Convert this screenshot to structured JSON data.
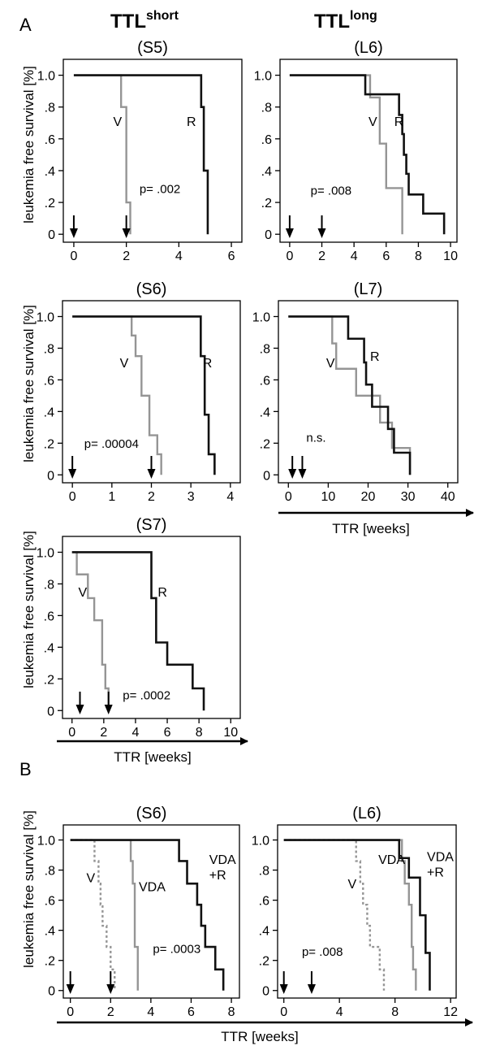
{
  "figure": {
    "panel_a_label": "A",
    "panel_b_label": "B",
    "column_short": {
      "base": "TTL",
      "sup": "short"
    },
    "column_long": {
      "base": "TTL",
      "sup": "long"
    },
    "ylabel": "leukemia free survival [%]",
    "xlabel": "TTR [weeks]"
  },
  "colors": {
    "black": "#111111",
    "gray": "#959595"
  },
  "chart_data": [
    {
      "id": "S5",
      "type": "line",
      "title": "(S5)",
      "xlim": [
        -0.4,
        6.4
      ],
      "ylim": [
        -0.05,
        1.1
      ],
      "xticks": [
        0,
        2,
        4,
        6
      ],
      "yticks": [
        {
          "v": 0,
          "label": "0"
        },
        {
          "v": 0.2,
          "label": ".2"
        },
        {
          "v": 0.4,
          "label": ".4"
        },
        {
          "v": 0.6,
          "label": ".6"
        },
        {
          "v": 0.8,
          "label": ".8"
        },
        {
          "v": 1,
          "label": "1.0"
        }
      ],
      "arrows": [
        0,
        2
      ],
      "pvalue": "p= .002",
      "pvalue_pos": [
        2.5,
        0.26
      ],
      "series": [
        {
          "name": "V",
          "color": "gray",
          "dash": false,
          "label_pos": [
            1.5,
            0.68
          ],
          "steps": [
            [
              0,
              1.0
            ],
            [
              1.8,
              0.8
            ],
            [
              2.0,
              0.2
            ],
            [
              2.15,
              0.0
            ]
          ]
        },
        {
          "name": "R",
          "color": "black",
          "dash": false,
          "label_pos": [
            4.3,
            0.68
          ],
          "steps": [
            [
              0,
              1.0
            ],
            [
              4.85,
              0.8
            ],
            [
              4.95,
              0.4
            ],
            [
              5.1,
              0.0
            ]
          ]
        }
      ]
    },
    {
      "id": "L6",
      "type": "line",
      "title": "(L6)",
      "xlim": [
        -0.6,
        10.4
      ],
      "ylim": [
        -0.05,
        1.1
      ],
      "xticks": [
        0,
        2,
        4,
        6,
        8,
        10
      ],
      "yticks": [
        {
          "v": 0,
          "label": "0"
        },
        {
          "v": 0.2,
          "label": ".2"
        },
        {
          "v": 0.4,
          "label": ".4"
        },
        {
          "v": 0.6,
          "label": ".6"
        },
        {
          "v": 0.8,
          "label": ".8"
        },
        {
          "v": 1,
          "label": "1.0"
        }
      ],
      "arrows": [
        0,
        2
      ],
      "pvalue": "p= .008",
      "pvalue_pos": [
        1.3,
        0.25
      ],
      "series": [
        {
          "name": "V",
          "color": "gray",
          "dash": false,
          "label_pos": [
            4.9,
            0.68
          ],
          "steps": [
            [
              0,
              1.0
            ],
            [
              5.0,
              0.86
            ],
            [
              5.6,
              0.57
            ],
            [
              6.0,
              0.29
            ],
            [
              7.0,
              0.0
            ]
          ]
        },
        {
          "name": "R",
          "color": "black",
          "dash": false,
          "label_pos": [
            6.5,
            0.68
          ],
          "steps": [
            [
              0,
              1.0
            ],
            [
              4.7,
              0.88
            ],
            [
              6.8,
              0.75
            ],
            [
              7.0,
              0.63
            ],
            [
              7.1,
              0.5
            ],
            [
              7.25,
              0.38
            ],
            [
              7.4,
              0.25
            ],
            [
              8.3,
              0.13
            ],
            [
              9.6,
              0.0
            ]
          ]
        }
      ]
    },
    {
      "id": "S6",
      "type": "line",
      "title": "(S6)",
      "xlim": [
        -0.25,
        4.25
      ],
      "ylim": [
        -0.05,
        1.1
      ],
      "xticks": [
        0,
        1,
        2,
        3,
        4
      ],
      "yticks": [
        {
          "v": 0,
          "label": "0"
        },
        {
          "v": 0.2,
          "label": ".2"
        },
        {
          "v": 0.4,
          "label": ".4"
        },
        {
          "v": 0.6,
          "label": ".6"
        },
        {
          "v": 0.8,
          "label": ".8"
        },
        {
          "v": 1,
          "label": "1.0"
        }
      ],
      "arrows": [
        0,
        2
      ],
      "pvalue": "p= .00004",
      "pvalue_pos": [
        0.3,
        0.17
      ],
      "series": [
        {
          "name": "V",
          "color": "gray",
          "dash": false,
          "label_pos": [
            1.2,
            0.68
          ],
          "steps": [
            [
              0,
              1.0
            ],
            [
              1.5,
              0.88
            ],
            [
              1.6,
              0.75
            ],
            [
              1.75,
              0.5
            ],
            [
              1.95,
              0.25
            ],
            [
              2.15,
              0.13
            ],
            [
              2.25,
              0.0
            ]
          ]
        },
        {
          "name": "R",
          "color": "black",
          "dash": false,
          "label_pos": [
            3.3,
            0.68
          ],
          "steps": [
            [
              0,
              1.0
            ],
            [
              3.25,
              0.75
            ],
            [
              3.35,
              0.38
            ],
            [
              3.45,
              0.13
            ],
            [
              3.6,
              0.0
            ]
          ]
        }
      ]
    },
    {
      "id": "L7",
      "type": "line",
      "title": "(L7)",
      "xlim": [
        -2.5,
        42.5
      ],
      "ylim": [
        -0.05,
        1.1
      ],
      "xticks": [
        0,
        10,
        20,
        30,
        40
      ],
      "yticks": [
        {
          "v": 0,
          "label": "0"
        },
        {
          "v": 0.2,
          "label": ".2"
        },
        {
          "v": 0.4,
          "label": ".4"
        },
        {
          "v": 0.6,
          "label": ".6"
        },
        {
          "v": 0.8,
          "label": ".8"
        },
        {
          "v": 1,
          "label": "1.0"
        }
      ],
      "arrows": [
        1,
        3.5
      ],
      "pvalue": "n.s.",
      "pvalue_pos": [
        4.5,
        0.21
      ],
      "series": [
        {
          "name": "V",
          "color": "gray",
          "dash": false,
          "label_pos": [
            9.5,
            0.68
          ],
          "steps": [
            [
              0,
              1.0
            ],
            [
              11,
              0.83
            ],
            [
              12,
              0.67
            ],
            [
              17,
              0.5
            ],
            [
              23,
              0.33
            ],
            [
              26,
              0.17
            ],
            [
              30.5,
              0.0
            ]
          ]
        },
        {
          "name": "R",
          "color": "black",
          "dash": false,
          "label_pos": [
            20.5,
            0.72
          ],
          "steps": [
            [
              0,
              1.0
            ],
            [
              15,
              0.86
            ],
            [
              19,
              0.71
            ],
            [
              19.5,
              0.57
            ],
            [
              21,
              0.43
            ],
            [
              25,
              0.29
            ],
            [
              26.5,
              0.14
            ],
            [
              30.5,
              0.0
            ]
          ]
        }
      ]
    },
    {
      "id": "S7",
      "type": "line",
      "title": "(S7)",
      "xlim": [
        -0.6,
        10.6
      ],
      "ylim": [
        -0.05,
        1.1
      ],
      "xticks": [
        0,
        2,
        4,
        6,
        8,
        10
      ],
      "yticks": [
        {
          "v": 0,
          "label": "0"
        },
        {
          "v": 0.2,
          "label": ".2"
        },
        {
          "v": 0.4,
          "label": ".4"
        },
        {
          "v": 0.6,
          "label": ".6"
        },
        {
          "v": 0.8,
          "label": ".8"
        },
        {
          "v": 1,
          "label": "1.0"
        }
      ],
      "arrows": [
        0.5,
        2.3
      ],
      "pvalue": "p= .0002",
      "pvalue_pos": [
        3.2,
        0.07
      ],
      "series": [
        {
          "name": "V",
          "color": "gray",
          "dash": false,
          "label_pos": [
            0.4,
            0.72
          ],
          "steps": [
            [
              0,
              1.0
            ],
            [
              0.3,
              0.86
            ],
            [
              1.0,
              0.71
            ],
            [
              1.4,
              0.57
            ],
            [
              1.9,
              0.29
            ],
            [
              2.1,
              0.14
            ],
            [
              2.3,
              0.0
            ]
          ]
        },
        {
          "name": "R",
          "color": "black",
          "dash": false,
          "label_pos": [
            5.4,
            0.72
          ],
          "steps": [
            [
              0,
              1.0
            ],
            [
              5.0,
              0.71
            ],
            [
              5.3,
              0.43
            ],
            [
              6.0,
              0.29
            ],
            [
              7.6,
              0.14
            ],
            [
              8.3,
              0.0
            ]
          ]
        }
      ]
    },
    {
      "id": "B-S6",
      "type": "line",
      "title": "(S6)",
      "xlim": [
        -0.35,
        8.4
      ],
      "ylim": [
        -0.05,
        1.1
      ],
      "xticks": [
        0,
        2,
        4,
        6,
        8
      ],
      "yticks": [
        {
          "v": 0,
          "label": "0"
        },
        {
          "v": 0.2,
          "label": ".2"
        },
        {
          "v": 0.4,
          "label": ".4"
        },
        {
          "v": 0.6,
          "label": ".6"
        },
        {
          "v": 0.8,
          "label": ".8"
        },
        {
          "v": 1,
          "label": "1.0"
        }
      ],
      "arrows": [
        0,
        2
      ],
      "pvalue": "p= .0003",
      "pvalue_pos": [
        4.1,
        0.25
      ],
      "series": [
        {
          "name": "V",
          "color": "gray",
          "dash": true,
          "label_pos": [
            0.8,
            0.72
          ],
          "steps": [
            [
              0,
              1.0
            ],
            [
              1.2,
              0.86
            ],
            [
              1.4,
              0.71
            ],
            [
              1.5,
              0.57
            ],
            [
              1.6,
              0.43
            ],
            [
              1.8,
              0.29
            ],
            [
              2.0,
              0.14
            ],
            [
              2.2,
              0.0
            ]
          ]
        },
        {
          "name": "VDA",
          "color": "gray",
          "dash": false,
          "label_pos": [
            3.4,
            0.66
          ],
          "steps": [
            [
              0,
              1.0
            ],
            [
              3.0,
              0.86
            ],
            [
              3.1,
              0.71
            ],
            [
              3.2,
              0.29
            ],
            [
              3.35,
              0.0
            ]
          ]
        },
        {
          "name": "VDA\n+R",
          "color": "black",
          "dash": false,
          "label_pos": [
            6.9,
            0.84
          ],
          "steps": [
            [
              0,
              1.0
            ],
            [
              5.4,
              0.86
            ],
            [
              5.8,
              0.71
            ],
            [
              6.3,
              0.57
            ],
            [
              6.5,
              0.43
            ],
            [
              6.7,
              0.29
            ],
            [
              7.2,
              0.14
            ],
            [
              7.6,
              0.0
            ]
          ]
        }
      ]
    },
    {
      "id": "B-L6",
      "type": "line",
      "title": "(L6)",
      "xlim": [
        -0.45,
        12.4
      ],
      "ylim": [
        -0.05,
        1.1
      ],
      "xticks": [
        0,
        4,
        8,
        12
      ],
      "yticks": [
        {
          "v": 0,
          "label": "0"
        },
        {
          "v": 0.2,
          "label": ".2"
        },
        {
          "v": 0.4,
          "label": ".4"
        },
        {
          "v": 0.6,
          "label": ".6"
        },
        {
          "v": 0.8,
          "label": ".8"
        },
        {
          "v": 1,
          "label": "1.0"
        }
      ],
      "arrows": [
        0,
        2
      ],
      "pvalue": "p= .008",
      "pvalue_pos": [
        1.3,
        0.23
      ],
      "series": [
        {
          "name": "V",
          "color": "gray",
          "dash": true,
          "label_pos": [
            4.6,
            0.68
          ],
          "steps": [
            [
              0,
              1.0
            ],
            [
              5.2,
              0.86
            ],
            [
              5.5,
              0.71
            ],
            [
              5.7,
              0.57
            ],
            [
              6.0,
              0.43
            ],
            [
              6.2,
              0.29
            ],
            [
              6.9,
              0.14
            ],
            [
              7.2,
              0.0
            ]
          ]
        },
        {
          "name": "VDA",
          "color": "gray",
          "dash": false,
          "label_pos": [
            6.8,
            0.84
          ],
          "steps": [
            [
              0,
              1.0
            ],
            [
              8.5,
              0.86
            ],
            [
              8.7,
              0.71
            ],
            [
              9.0,
              0.57
            ],
            [
              9.2,
              0.29
            ],
            [
              9.3,
              0.14
            ],
            [
              9.5,
              0.0
            ]
          ]
        },
        {
          "name": "VDA\n+R",
          "color": "black",
          "dash": false,
          "label_pos": [
            10.3,
            0.86
          ],
          "steps": [
            [
              0,
              1.0
            ],
            [
              8.3,
              0.88
            ],
            [
              9.0,
              0.75
            ],
            [
              9.8,
              0.5
            ],
            [
              10.2,
              0.25
            ],
            [
              10.5,
              0.0
            ]
          ]
        }
      ]
    }
  ]
}
